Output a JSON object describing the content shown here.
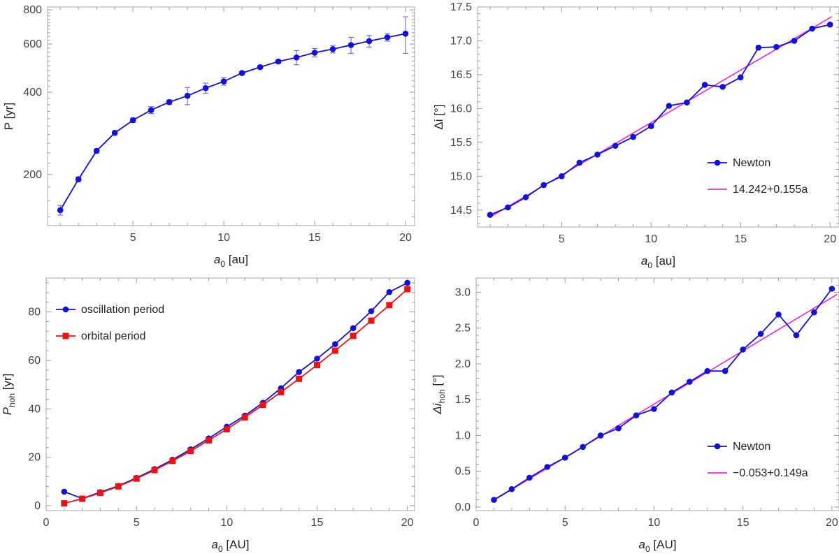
{
  "chart_data": [
    {
      "id": "p1",
      "type": "line",
      "yscale": "log",
      "xlim": [
        0.3,
        20.5
      ],
      "ylim": [
        130,
        820
      ],
      "xticks": [
        5,
        10,
        15,
        20
      ],
      "yticks": [
        200,
        400,
        600,
        800
      ],
      "xlabel": {
        "main": "a",
        "sub": "0",
        "rest": " [au]"
      },
      "ylabel": {
        "main": "P [yr]",
        "sub": "",
        "rest": ""
      },
      "series": [
        {
          "name": "P",
          "color": "#1010e0",
          "marker": "circle",
          "x": [
            1,
            2,
            3,
            4,
            5,
            6,
            7,
            8,
            9,
            10,
            11,
            12,
            13,
            14,
            15,
            16,
            17,
            18,
            19,
            20
          ],
          "y": [
            148,
            192,
            244,
            284,
            316,
            344,
            368,
            388,
            414,
            438,
            470,
            494,
            518,
            536,
            558,
            575,
            595,
            615,
            635,
            655
          ],
          "err": [
            6,
            4,
            4,
            5,
            6,
            10,
            7,
            28,
            18,
            14,
            6,
            6,
            8,
            32,
            20,
            18,
            40,
            30,
            20,
            100
          ]
        }
      ]
    },
    {
      "id": "p2",
      "type": "line",
      "xlim": [
        0.3,
        20.5
      ],
      "ylim": [
        14.25,
        17.5
      ],
      "xticks": [
        5,
        10,
        15,
        20
      ],
      "yticks": [
        14.5,
        15.0,
        15.5,
        16.0,
        16.5,
        17.0,
        17.5
      ],
      "yfmt": 1,
      "xlabel": {
        "main": "a",
        "sub": "0",
        "rest": " [au]"
      },
      "ylabel": {
        "main": "Δi [°]",
        "sub": "",
        "rest": ""
      },
      "legend": {
        "position": "bottom-right",
        "entries": [
          "Newton",
          "14.242+0.155a"
        ]
      },
      "series": [
        {
          "name": "Newton",
          "color": "#1010e0",
          "marker": "circle",
          "x": [
            1,
            2,
            3,
            4,
            5,
            6,
            7,
            8,
            9,
            10,
            11,
            12,
            13,
            14,
            15,
            16,
            17,
            18,
            19,
            20
          ],
          "y": [
            14.43,
            14.54,
            14.69,
            14.87,
            15.0,
            15.2,
            15.32,
            15.45,
            15.58,
            15.74,
            16.04,
            16.09,
            16.35,
            16.32,
            16.46,
            16.9,
            16.91,
            17.0,
            17.18,
            17.24
          ]
        }
      ],
      "fit": {
        "name": "14.242+0.155a",
        "color": "#ee22ee",
        "intercept": 14.242,
        "slope": 0.155,
        "x0": 1,
        "x1": 20.1
      }
    },
    {
      "id": "p3",
      "type": "line",
      "xlim": [
        0,
        20.4
      ],
      "ylim": [
        -2,
        94
      ],
      "xticks": [
        0,
        5,
        10,
        15,
        20
      ],
      "yticks": [
        0,
        20,
        40,
        60,
        80
      ],
      "xlabel": {
        "main": "a",
        "sub": "0",
        "rest": " [AU]"
      },
      "ylabel": {
        "main": "P",
        "sub": "hoh",
        "rest": " [yr]"
      },
      "legend": {
        "position": "top-left",
        "entries": [
          "oscillation period",
          "orbital period"
        ]
      },
      "series": [
        {
          "name": "oscillation period",
          "color": "#1010e0",
          "marker": "circle",
          "x": [
            1,
            2,
            3,
            4,
            5,
            6,
            7,
            8,
            9,
            10,
            11,
            12,
            13,
            14,
            15,
            16,
            17,
            18,
            19,
            20
          ],
          "y": [
            5.8,
            3.0,
            5.6,
            8.2,
            11.5,
            15.1,
            19.0,
            23.3,
            27.8,
            32.6,
            37.2,
            42.5,
            48.5,
            55.2,
            60.7,
            66.7,
            73.3,
            80.3,
            88.2,
            92.0
          ]
        },
        {
          "name": "orbital period",
          "color": "#ee1111",
          "marker": "square",
          "x": [
            1,
            2,
            3,
            4,
            5,
            6,
            7,
            8,
            9,
            10,
            11,
            12,
            13,
            14,
            15,
            16,
            17,
            18,
            19,
            20
          ],
          "y": [
            1.0,
            2.9,
            5.3,
            8.0,
            11.2,
            14.7,
            18.5,
            22.6,
            27.0,
            31.6,
            36.5,
            41.6,
            46.9,
            52.4,
            58.1,
            64.0,
            70.1,
            76.4,
            82.8,
            89.4
          ]
        }
      ]
    },
    {
      "id": "p4",
      "type": "line",
      "xlim": [
        0,
        20.4
      ],
      "ylim": [
        -0.05,
        3.2
      ],
      "xticks": [
        0,
        5,
        10,
        15,
        20
      ],
      "yticks": [
        0.0,
        0.5,
        1.0,
        1.5,
        2.0,
        2.5,
        3.0
      ],
      "yfmt": 1,
      "xlabel": {
        "main": "a",
        "sub": "0",
        "rest": " [AU]"
      },
      "ylabel": {
        "main": "Δi",
        "sub": "hoh",
        "rest": " [°]"
      },
      "legend": {
        "position": "bottom-right",
        "entries": [
          "Newton",
          "−0.053+0.149a"
        ]
      },
      "series": [
        {
          "name": "Newton",
          "color": "#1010e0",
          "marker": "circle",
          "x": [
            1,
            2,
            3,
            4,
            5,
            6,
            7,
            8,
            9,
            10,
            11,
            12,
            13,
            14,
            15,
            16,
            17,
            18,
            19,
            20
          ],
          "y": [
            0.1,
            0.25,
            0.41,
            0.56,
            0.69,
            0.84,
            1.0,
            1.1,
            1.28,
            1.37,
            1.6,
            1.75,
            1.9,
            1.9,
            2.2,
            2.42,
            2.69,
            2.4,
            2.72,
            3.05
          ]
        }
      ],
      "fit": {
        "name": "−0.053+0.149a",
        "color": "#ee22ee",
        "intercept": -0.053,
        "slope": 0.149,
        "x0": 1,
        "x1": 20.3
      }
    }
  ]
}
